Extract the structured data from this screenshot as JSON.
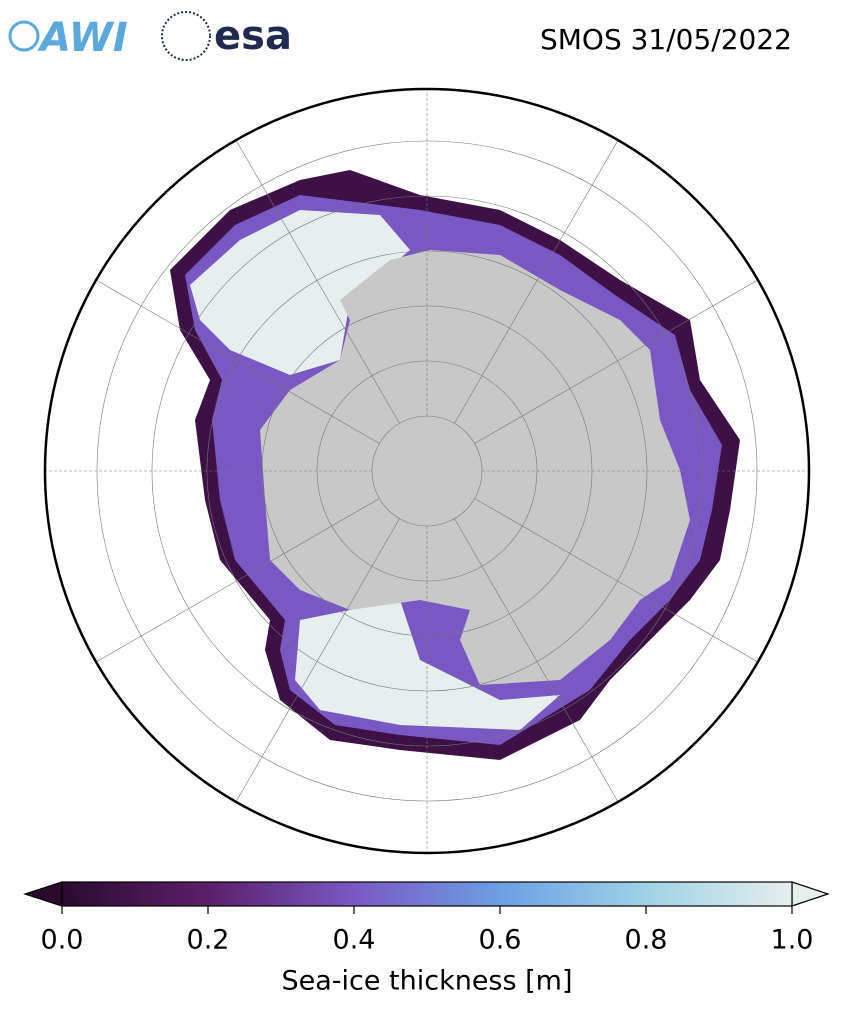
{
  "header": {
    "logos": [
      "AWI",
      "esa"
    ],
    "title": "SMOS 31/05/2022"
  },
  "colorbar": {
    "label": "Sea-ice thickness [m]",
    "xlim": [
      0,
      1
    ],
    "xticks": [
      {
        "value": 0,
        "label": "0.0"
      },
      {
        "value": 0.2,
        "label": "0.2"
      },
      {
        "value": 0.4,
        "label": "0.4"
      },
      {
        "value": 0.6,
        "label": "0.6"
      },
      {
        "value": 0.8,
        "label": "0.8"
      },
      {
        "value": 1,
        "label": "1.0"
      }
    ],
    "colors": [
      "#2a0b2e",
      "#5b1f6a",
      "#7a58c4",
      "#6c9fe4",
      "#9fd2e6",
      "#e6eeee"
    ]
  }
}
